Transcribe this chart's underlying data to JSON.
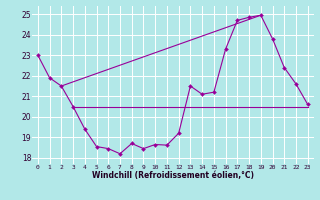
{
  "xlabel": "Windchill (Refroidissement éolien,°C)",
  "bg_color": "#b2e8e8",
  "grid_color": "#ffffff",
  "line_color": "#990099",
  "ylim": [
    17.7,
    25.4
  ],
  "xlim": [
    -0.5,
    23.5
  ],
  "yticks": [
    18,
    19,
    20,
    21,
    22,
    23,
    24,
    25
  ],
  "xticks": [
    0,
    1,
    2,
    3,
    4,
    5,
    6,
    7,
    8,
    9,
    10,
    11,
    12,
    13,
    14,
    15,
    16,
    17,
    18,
    19,
    20,
    21,
    22,
    23
  ],
  "line1_x": [
    0,
    1,
    2,
    3,
    4,
    5,
    6,
    7,
    8,
    9,
    10,
    11,
    12,
    13,
    14,
    15,
    16,
    17,
    18,
    19,
    20,
    21,
    22,
    23
  ],
  "line1_y": [
    23.0,
    21.9,
    21.5,
    20.5,
    19.4,
    18.55,
    18.45,
    18.2,
    18.7,
    18.45,
    18.65,
    18.62,
    19.2,
    21.5,
    21.1,
    21.2,
    23.3,
    24.7,
    24.85,
    24.95,
    23.8,
    22.4,
    21.6,
    20.6
  ],
  "line2_x": [
    2,
    19
  ],
  "line2_y": [
    21.5,
    24.95
  ],
  "line3_x": [
    3,
    23
  ],
  "line3_y": [
    20.5,
    20.5
  ],
  "xlabel_fontsize": 5.5,
  "ytick_fontsize": 5.5,
  "xtick_fontsize": 4.5
}
